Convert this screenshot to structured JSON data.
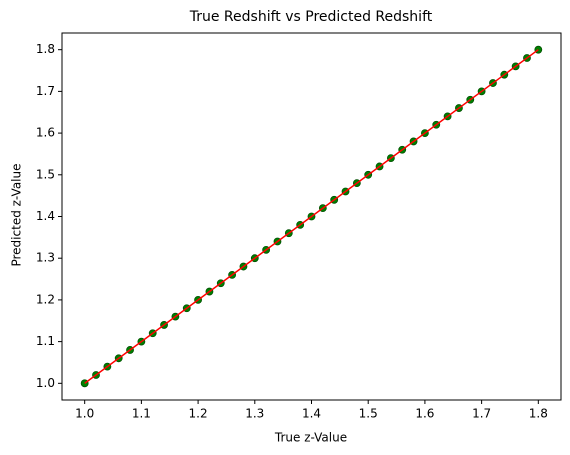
{
  "chart_data": {
    "type": "scatter",
    "title": "True Redshift vs Predicted Redshift",
    "x_label": "True z-Value",
    "y_label": "Predicted z-Value",
    "xlim": [
      0.96,
      1.84
    ],
    "ylim": [
      0.96,
      1.84
    ],
    "xticks": [
      {
        "value": 1,
        "label": "1.0"
      },
      1.1,
      1.2,
      1.3,
      1.4,
      1.5,
      1.6,
      1.7,
      1.8
    ],
    "yticks": [
      {
        "value": 1,
        "label": "1.0"
      },
      1.1,
      1.2,
      1.3,
      1.4,
      1.5,
      1.6,
      1.7,
      1.8
    ],
    "series": [
      {
        "type": "scatter",
        "color": "#008000",
        "x": [
          1.0,
          1.02,
          1.04,
          1.06,
          1.08,
          1.1,
          1.12,
          1.14,
          1.16,
          1.18,
          1.2,
          1.22,
          1.24,
          1.26,
          1.28,
          1.3,
          1.32,
          1.34,
          1.36,
          1.38,
          1.4,
          1.42,
          1.44,
          1.46,
          1.48,
          1.5,
          1.52,
          1.54,
          1.56,
          1.58,
          1.6,
          1.62,
          1.64,
          1.66,
          1.68,
          1.7,
          1.72,
          1.74,
          1.76,
          1.78,
          1.8
        ],
        "values": [
          1.0,
          1.02,
          1.04,
          1.06,
          1.08,
          1.1,
          1.12,
          1.14,
          1.16,
          1.18,
          1.2,
          1.22,
          1.24,
          1.26,
          1.28,
          1.3,
          1.32,
          1.34,
          1.36,
          1.38,
          1.4,
          1.42,
          1.44,
          1.46,
          1.48,
          1.5,
          1.52,
          1.54,
          1.56,
          1.58,
          1.6,
          1.62,
          1.64,
          1.66,
          1.68,
          1.7,
          1.72,
          1.74,
          1.76,
          1.78,
          1.8
        ]
      },
      {
        "type": "line",
        "color": "#ff0000",
        "x": [
          1.0,
          1.8
        ],
        "values": [
          1.0,
          1.8
        ]
      }
    ]
  }
}
